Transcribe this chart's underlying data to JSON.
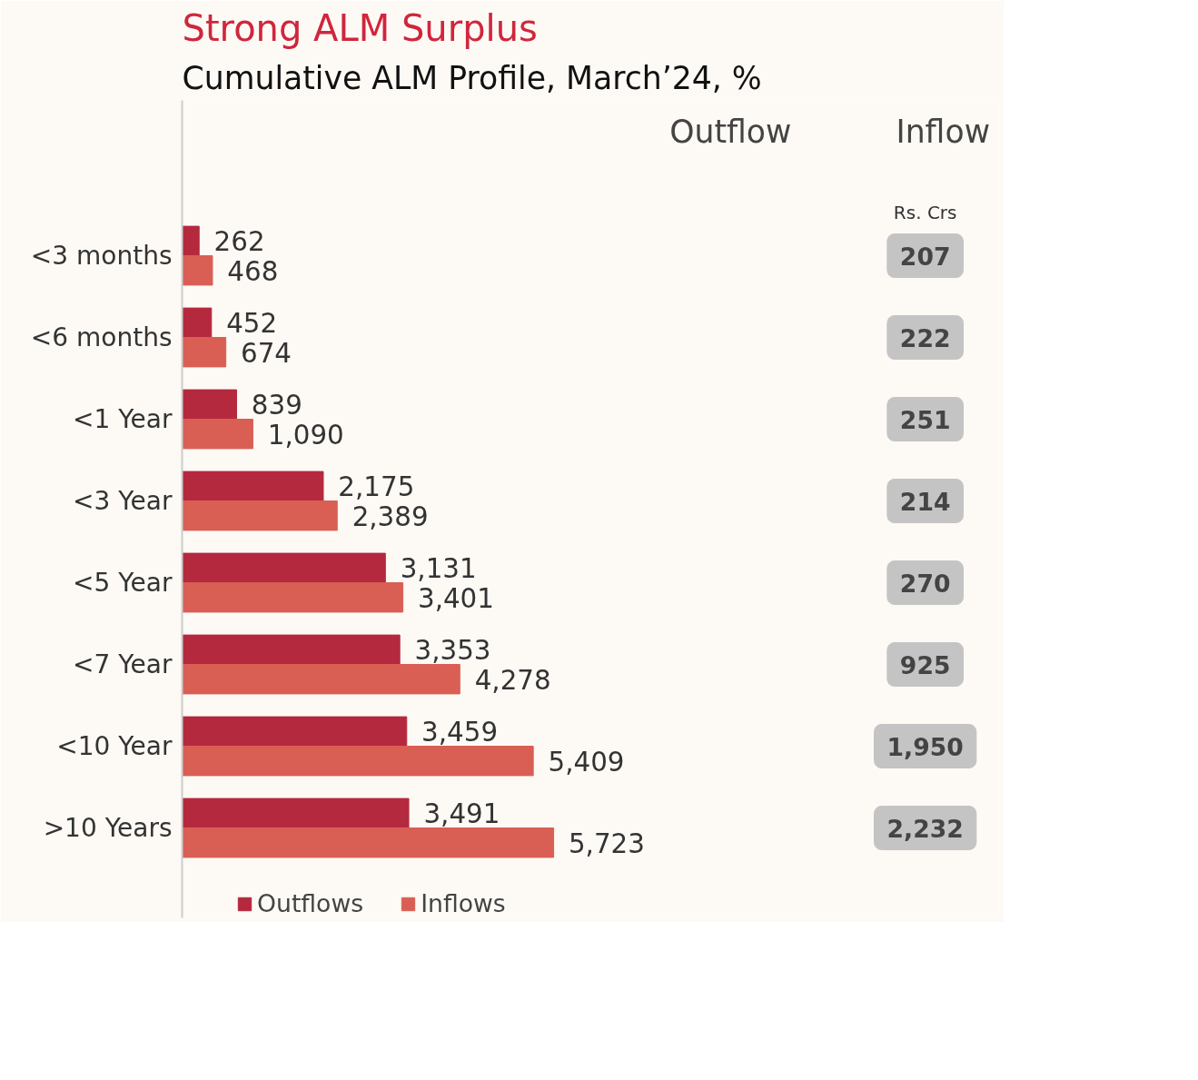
{
  "chart_data": {
    "type": "bar",
    "orientation": "horizontal",
    "title": "Strong ALM Surplus",
    "subtitle": "Cumulative ALM Profile, March’24, %",
    "categories": [
      "<3 months",
      "<6 months",
      "<1 Year",
      "<3 Year",
      "<5 Year",
      "<7 Year",
      "<10 Year",
      ">10 Years"
    ],
    "series": [
      {
        "name": "Outflows",
        "color": "#b5293f",
        "values": [
          262,
          452,
          839,
          2175,
          3131,
          3353,
          3459,
          3491
        ],
        "value_labels": [
          "262",
          "452",
          "839",
          "2,175",
          "3,131",
          "3,353",
          "3,459",
          "3,491"
        ]
      },
      {
        "name": "Inflows",
        "color": "#d95f54",
        "values": [
          468,
          674,
          1090,
          2389,
          3401,
          4278,
          5409,
          5723
        ],
        "value_labels": [
          "468",
          "674",
          "1,090",
          "2,389",
          "3,401",
          "4,278",
          "5,409",
          "5,723"
        ]
      }
    ],
    "legend": "bottom",
    "grid": false,
    "tick_labels": "y",
    "annotations": [
      "Outflow",
      "Inflow",
      "Rs. Crs",
      "207",
      "222",
      "251",
      "214",
      "270",
      "925",
      "1,950",
      "2,232"
    ]
  }
}
